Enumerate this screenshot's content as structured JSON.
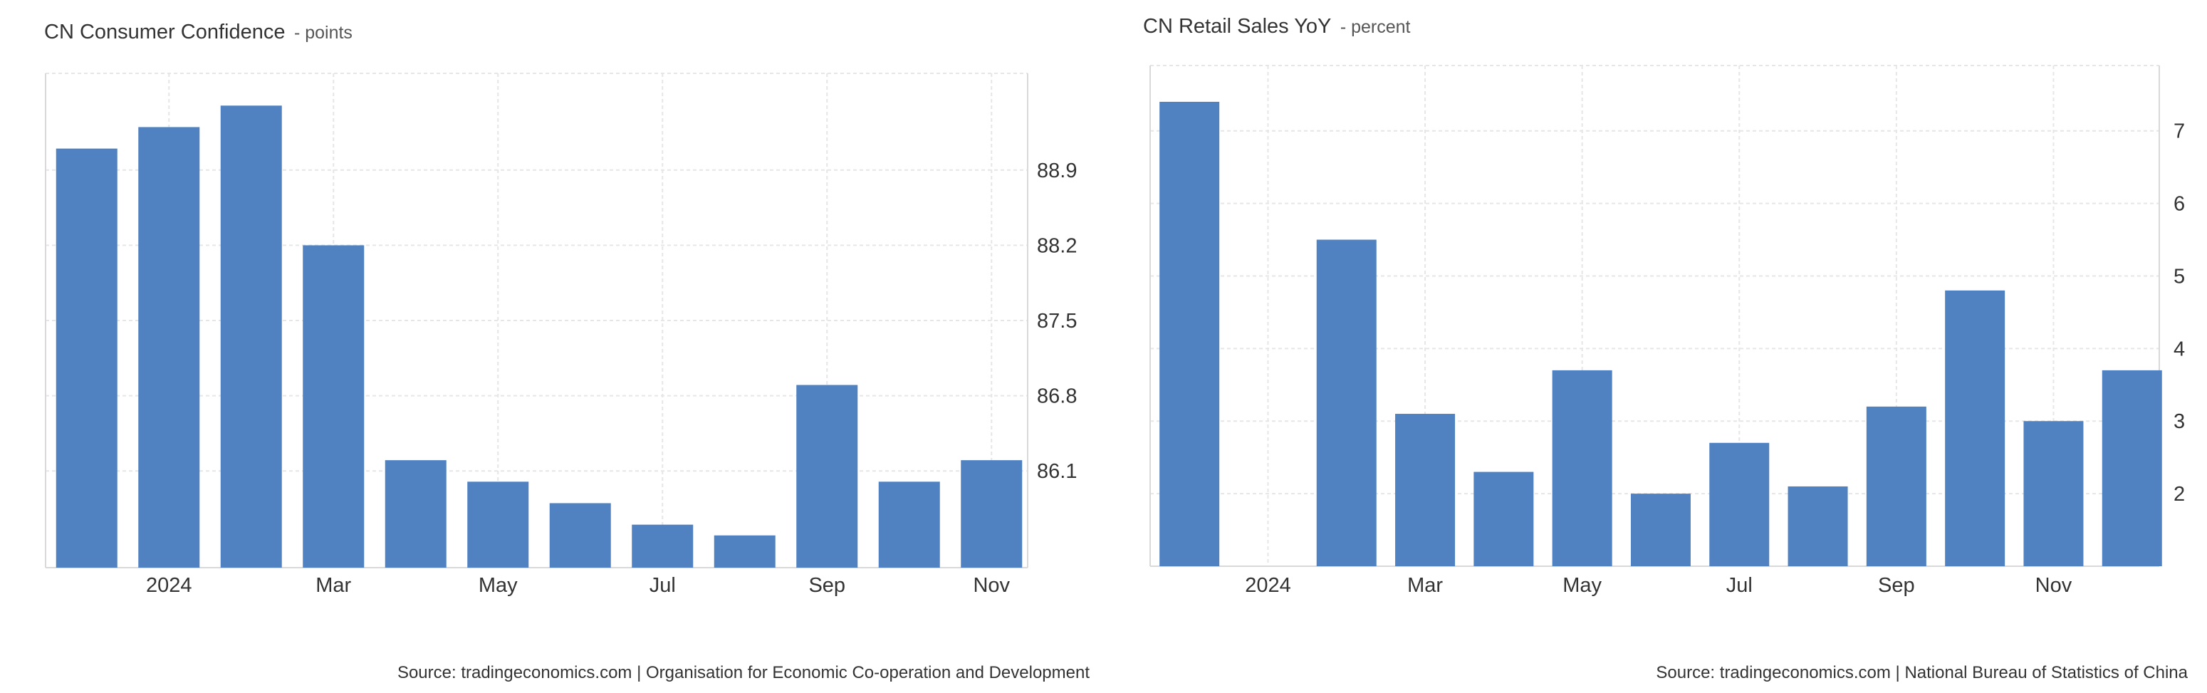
{
  "colors": {
    "bar": "#5081c0",
    "grid": "#e6e6e6",
    "text": "#333333"
  },
  "chart_data": [
    {
      "type": "bar",
      "title": "CN Consumer Confidence",
      "unit": "- points",
      "source": "Source: tradingeconomics.com | Organisation for Economic Co-operation and Development",
      "categories": [
        "Dec 2023",
        "Jan 2024",
        "Feb 2024",
        "Mar 2024",
        "Apr 2024",
        "May 2024",
        "Jun 2024",
        "Jul 2024",
        "Aug 2024",
        "Sep 2024",
        "Oct 2024",
        "Nov 2024"
      ],
      "values": [
        89.1,
        89.3,
        89.5,
        88.2,
        86.2,
        86.0,
        85.8,
        85.6,
        85.5,
        86.9,
        86.0,
        86.2
      ],
      "x_tick_labels": [
        "2024",
        "Mar",
        "May",
        "Jul",
        "Sep",
        "Nov"
      ],
      "y_ticks": [
        86.1,
        86.8,
        87.5,
        88.2,
        88.9
      ],
      "ylim": [
        85.2,
        89.8
      ],
      "grid": true
    },
    {
      "type": "bar",
      "title": "CN Retail Sales YoY",
      "unit": "- percent",
      "source": "Source: tradingeconomics.com | National Bureau of Statistics of China",
      "categories": [
        "Dec 2023",
        "Jan 2024",
        "Feb 2024",
        "Mar 2024",
        "Apr 2024",
        "May 2024",
        "Jun 2024",
        "Jul 2024",
        "Aug 2024",
        "Sep 2024",
        "Oct 2024",
        "Nov 2024",
        "Dec 2024"
      ],
      "values": [
        7.4,
        null,
        5.5,
        3.1,
        2.3,
        3.7,
        2.0,
        2.7,
        2.1,
        3.2,
        4.8,
        3.0,
        3.7
      ],
      "x_tick_labels": [
        "2024",
        "Mar",
        "May",
        "Jul",
        "Sep",
        "Nov"
      ],
      "y_ticks": [
        2,
        3,
        4,
        5,
        6,
        7
      ],
      "ylim": [
        1.0,
        7.9
      ],
      "grid": true
    }
  ]
}
